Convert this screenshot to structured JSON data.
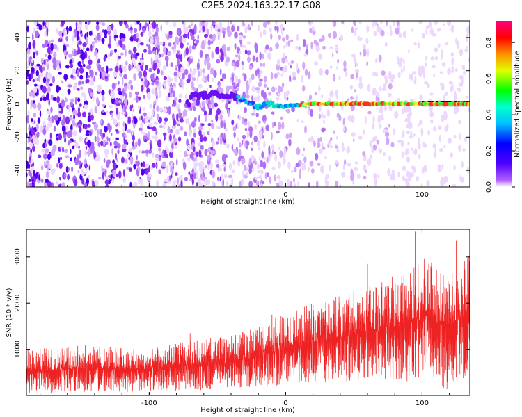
{
  "title": "C2E5.2024.163.22.17.G08",
  "chart_data": [
    {
      "type": "heatmap",
      "name": "spectrogram",
      "xlabel": "Height of straight line (km)",
      "ylabel": "Frequency (Hz)",
      "xlim": [
        -190,
        135
      ],
      "ylim": [
        -50,
        50
      ],
      "xticks": [
        -100,
        0,
        100
      ],
      "xtick_labels": [
        "-100",
        "0",
        "100"
      ],
      "yticks": [
        -40,
        -20,
        0,
        20,
        40
      ],
      "ytick_labels": [
        "-40",
        "-20",
        "0",
        "20",
        "40"
      ],
      "ridge_line": {
        "frequency": 0,
        "x_start": 100,
        "x_end": 135,
        "color": "#000000"
      },
      "ridge_points": [
        {
          "x": -70,
          "y": 5
        },
        {
          "x": -60,
          "y": 5
        },
        {
          "x": -50,
          "y": 6
        },
        {
          "x": -40,
          "y": 5
        },
        {
          "x": -33,
          "y": 3
        },
        {
          "x": -27,
          "y": 1
        },
        {
          "x": -20,
          "y": -2
        },
        {
          "x": -12,
          "y": 0
        },
        {
          "x": -5,
          "y": -1
        },
        {
          "x": 0,
          "y": -1
        },
        {
          "x": 5,
          "y": -1
        },
        {
          "x": 20,
          "y": 0
        },
        {
          "x": 60,
          "y": 0
        },
        {
          "x": 100,
          "y": 0
        },
        {
          "x": 135,
          "y": 0
        }
      ]
    },
    {
      "type": "line",
      "name": "snr",
      "xlabel": "Height of straight line (km)",
      "ylabel": "SNR (10 * v/v)",
      "xlim": [
        -190,
        135
      ],
      "ylim": [
        0,
        3600
      ],
      "xticks": [
        -100,
        0,
        100
      ],
      "xtick_labels": [
        "-100",
        "0",
        "100"
      ],
      "yticks": [
        1000,
        2000,
        3000
      ],
      "ytick_labels": [
        "1000",
        "2000",
        "3000"
      ],
      "color": "#ee2222",
      "envelope": [
        {
          "x": -190,
          "low": 50,
          "high": 1000
        },
        {
          "x": -150,
          "low": 60,
          "high": 1100
        },
        {
          "x": -100,
          "low": 80,
          "high": 1000
        },
        {
          "x": -80,
          "low": 100,
          "high": 1150
        },
        {
          "x": -40,
          "low": 120,
          "high": 1300
        },
        {
          "x": -20,
          "low": 200,
          "high": 1500
        },
        {
          "x": 0,
          "low": 200,
          "high": 1800
        },
        {
          "x": 20,
          "low": 250,
          "high": 2000
        },
        {
          "x": 40,
          "low": 300,
          "high": 2200
        },
        {
          "x": 60,
          "low": 300,
          "high": 2400
        },
        {
          "x": 80,
          "low": 300,
          "high": 2600
        },
        {
          "x": 100,
          "low": 300,
          "high": 3000
        },
        {
          "x": 120,
          "low": 100,
          "high": 2800
        },
        {
          "x": 135,
          "low": 500,
          "high": 3200
        }
      ]
    }
  ],
  "colorbar": {
    "label": "Normalized spectral amplitude",
    "ticks": [
      0.0,
      0.2,
      0.4,
      0.6,
      0.8
    ],
    "tick_labels": [
      "0.0",
      "0.2",
      "0.4",
      "0.6",
      "0.8"
    ],
    "range": [
      0,
      0.92
    ]
  }
}
